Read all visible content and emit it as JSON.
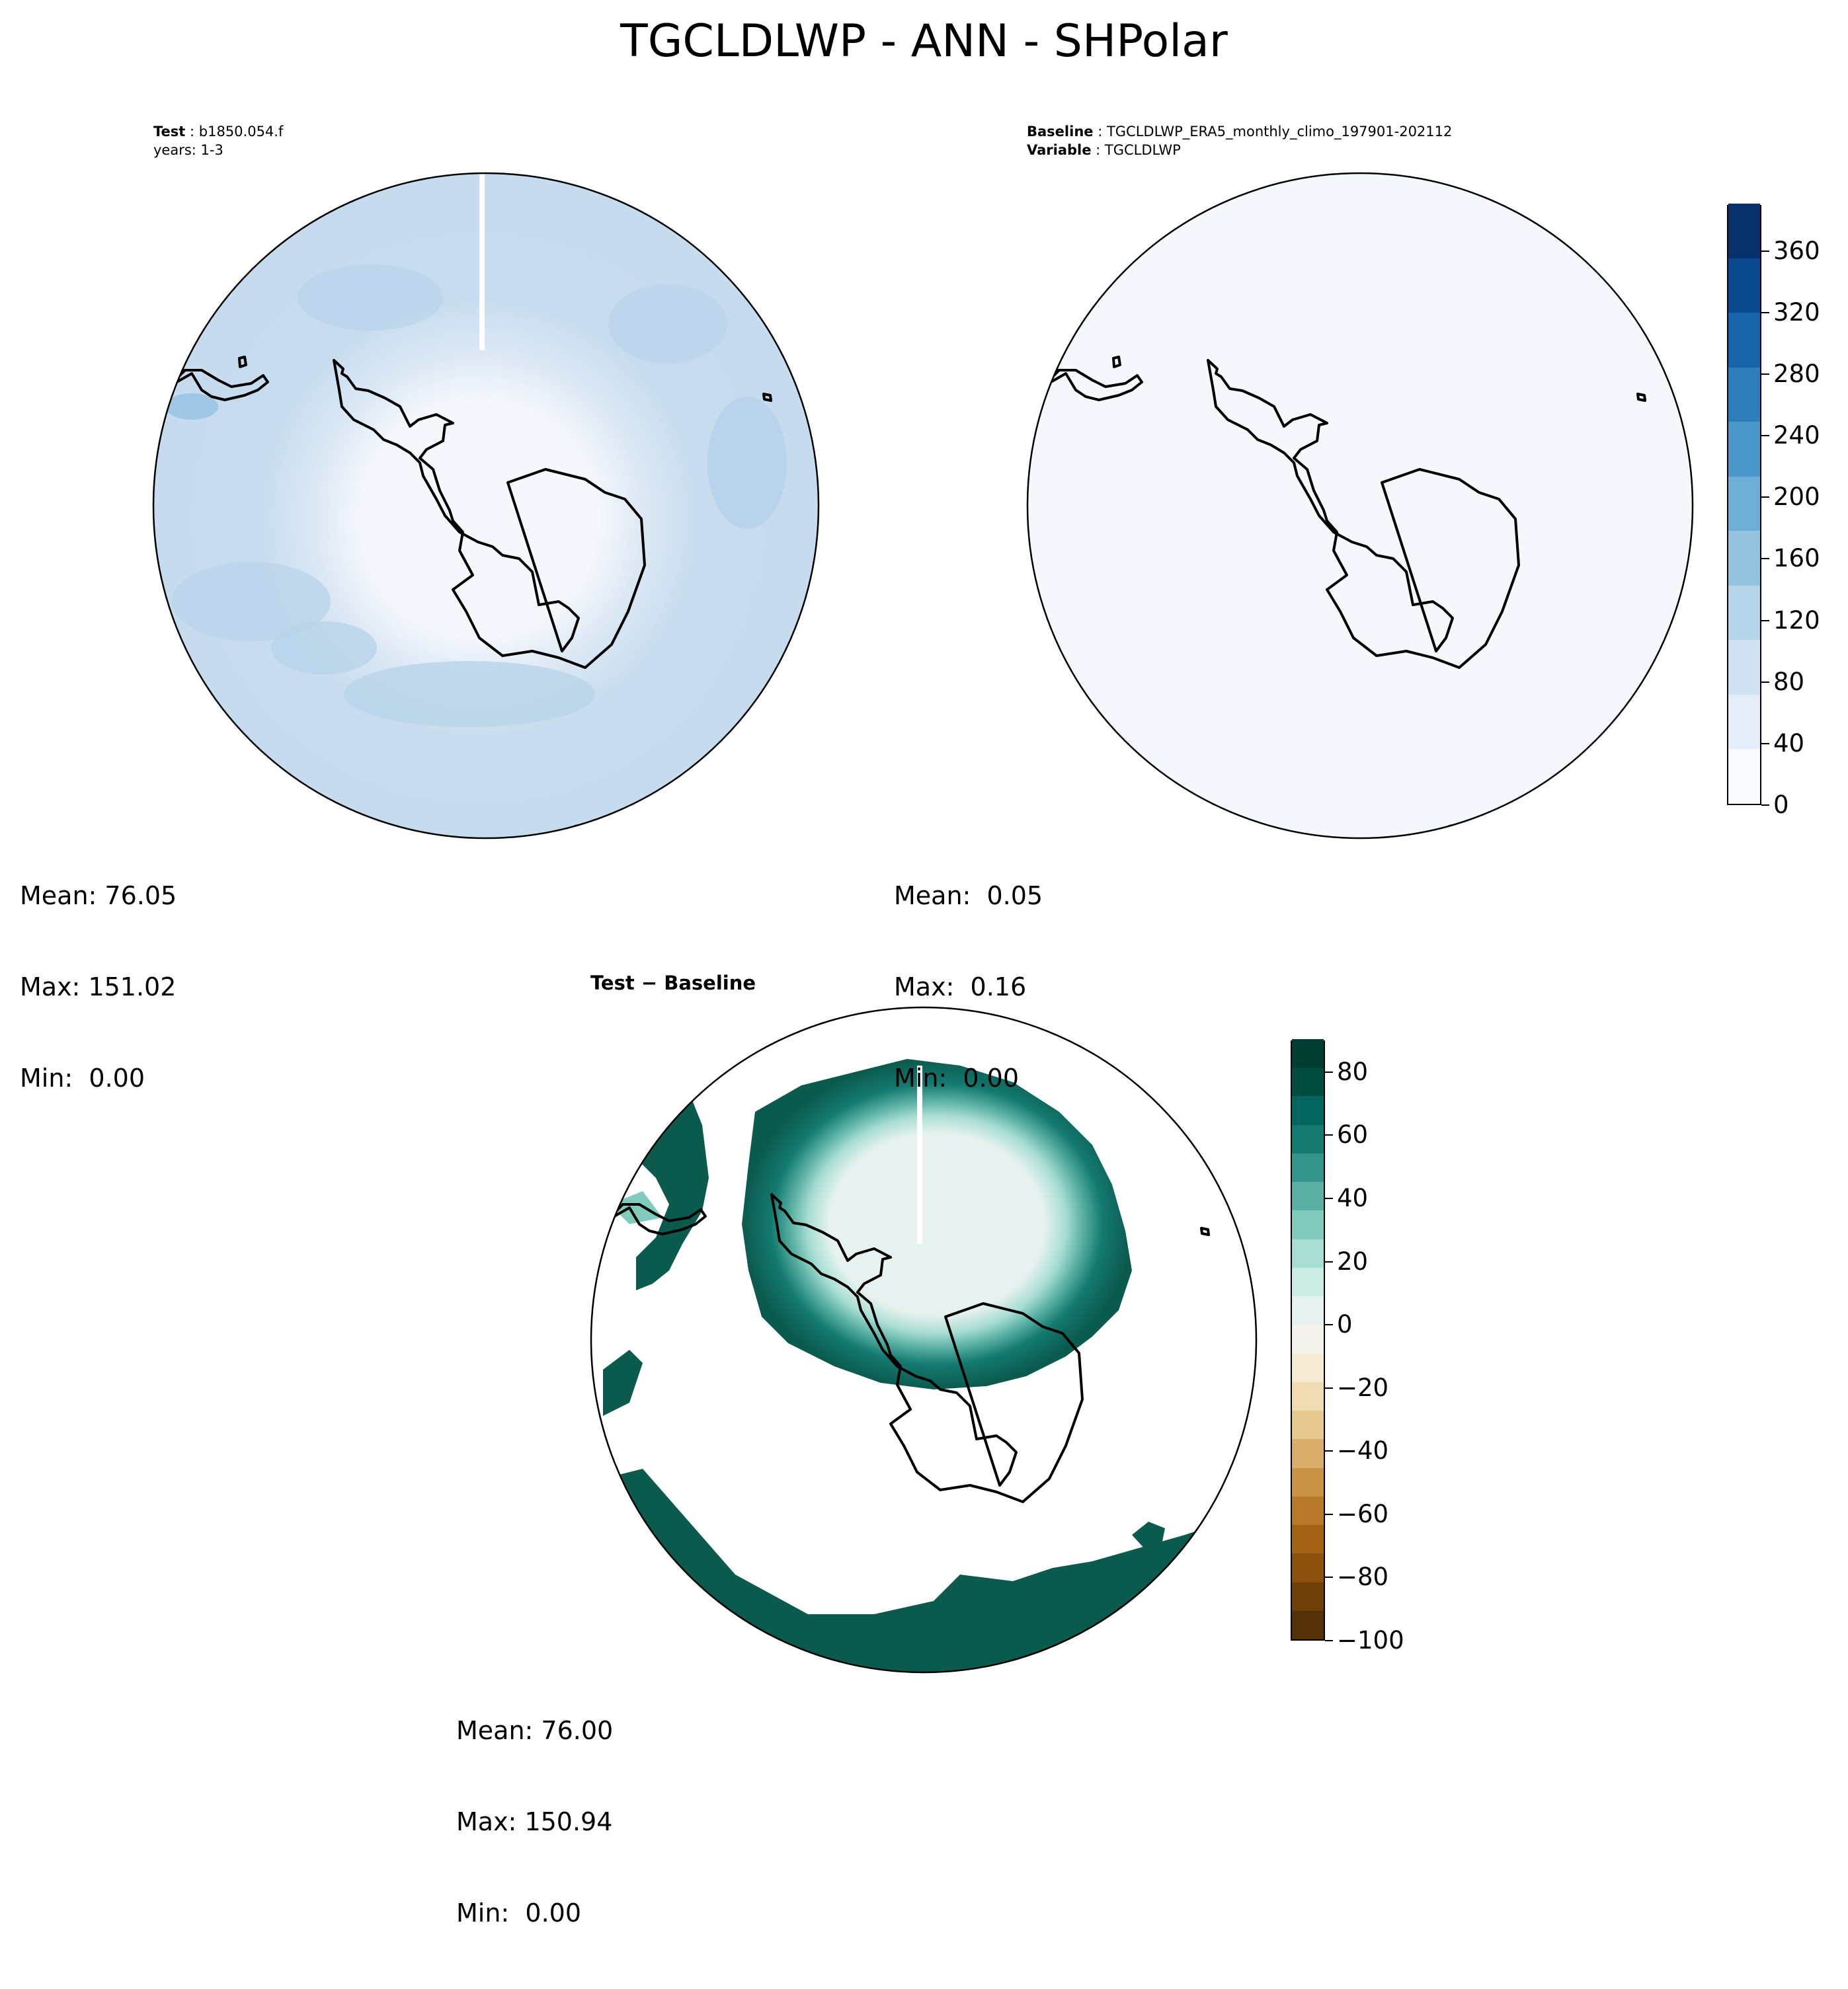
{
  "figure": {
    "title": "TGCLDLWP - ANN - SHPolar"
  },
  "panels": {
    "test": {
      "label_bold": "Test",
      "label_value": "b1850.054.f",
      "years": "years: 1-3",
      "mean": "Mean: 76.05",
      "max": "Max: 151.02",
      "min": "Min:  0.00"
    },
    "baseline": {
      "label_bold": "Baseline",
      "label_value": "TGCLDLWP_ERA5_monthly_climo_197901-202112",
      "var_bold": "Variable",
      "var_value": "TGCLDLWP",
      "mean": "Mean:  0.05",
      "max": "Max:  0.16",
      "min": "Min:  0.00"
    },
    "diff": {
      "title": "Test − Baseline",
      "mean": "Mean: 76.00",
      "max": "Max: 150.94",
      "min": "Min:  0.00"
    }
  },
  "colorbars": {
    "main": {
      "cmap": "Blues",
      "min": 0,
      "max": 390,
      "ticks": [
        "0",
        "40",
        "80",
        "120",
        "160",
        "200",
        "240",
        "280",
        "320",
        "360"
      ],
      "tick_values": [
        0,
        40,
        80,
        120,
        160,
        200,
        240,
        280,
        320,
        360
      ],
      "colors": [
        "#f7fbff",
        "#e3eef9",
        "#cfe1f2",
        "#b5d4e9",
        "#93c3df",
        "#6daed5",
        "#4b97c9",
        "#2f7ebc",
        "#1864aa",
        "#0a4a90",
        "#08306b"
      ]
    },
    "diff": {
      "cmap": "BrBG",
      "min": -100,
      "max": 90,
      "ticks": [
        "−100",
        "−80",
        "−60",
        "−40",
        "−20",
        "0",
        "20",
        "40",
        "60",
        "80"
      ],
      "tick_values": [
        -100,
        -80,
        -60,
        -40,
        -20,
        0,
        20,
        40,
        60,
        80
      ],
      "colors": [
        "#543005",
        "#6f3f08",
        "#8a500c",
        "#a36214",
        "#b8782a",
        "#c99246",
        "#d9ae68",
        "#e5c98f",
        "#efdcb2",
        "#f5ebd5",
        "#f5f3ec",
        "#e6f2ef",
        "#cbebe5",
        "#a7ddd3",
        "#80cbbc",
        "#59b0a3",
        "#35948a",
        "#147a70",
        "#01665e",
        "#004d40",
        "#003c30"
      ]
    }
  },
  "colors": {
    "test_field": "#c9ddf0",
    "test_field_dark": "#b3d1e8",
    "baseline_field": "#f4f8fc",
    "diff_dark": "#0b5a4e",
    "diff_light": "#e6f2ef"
  }
}
